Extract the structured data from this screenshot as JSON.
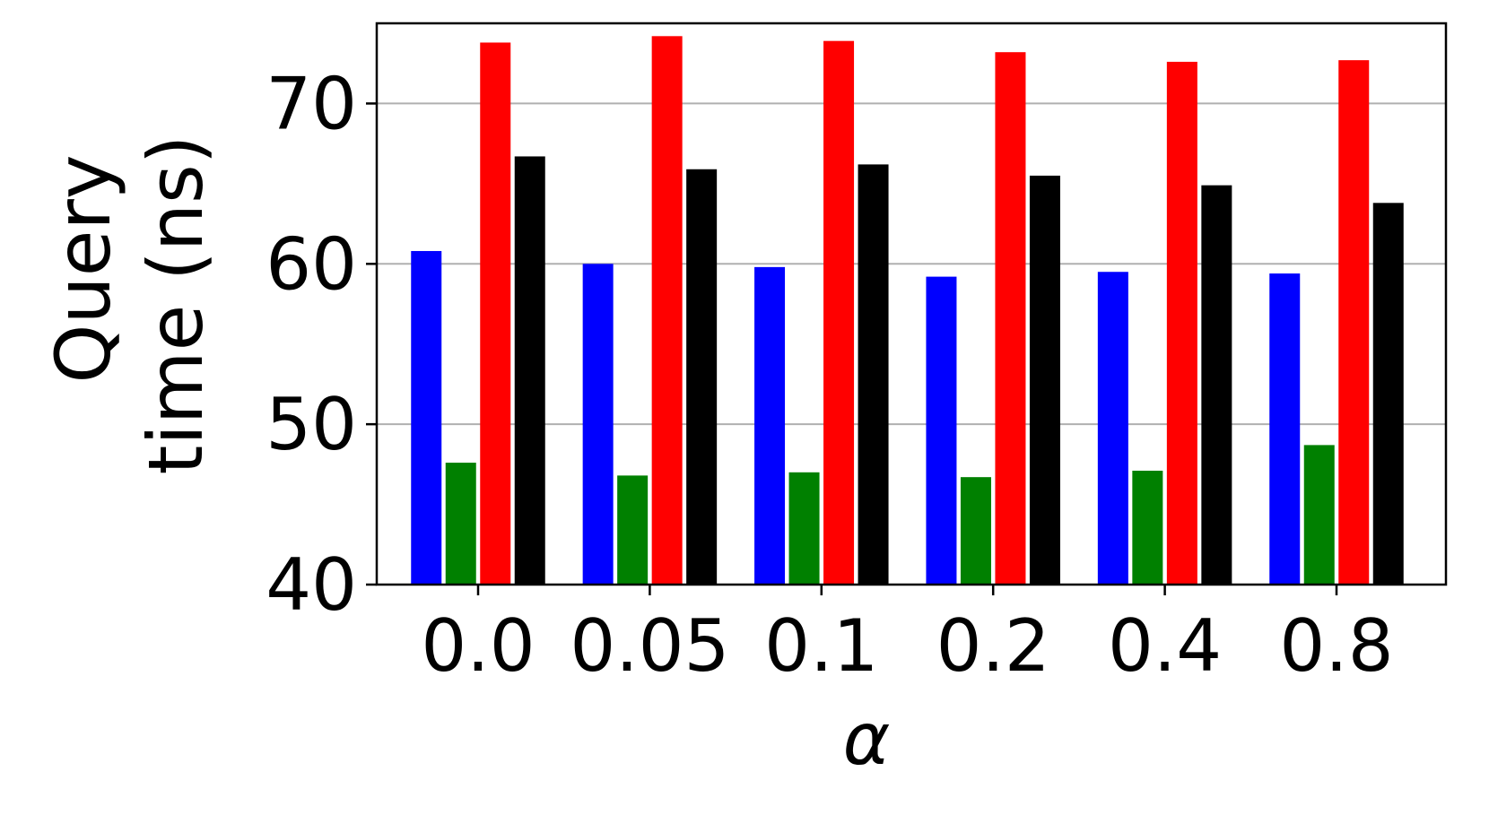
{
  "chart_data": {
    "type": "bar",
    "xlabel": "α",
    "ylabel_lines": [
      "Query",
      "time (ns)"
    ],
    "categories": [
      "0.0",
      "0.05",
      "0.1",
      "0.2",
      "0.4",
      "0.8"
    ],
    "ylim": [
      40,
      75
    ],
    "yticks": [
      40,
      50,
      60,
      70
    ],
    "grid": "horizontal",
    "legend": "none",
    "series": [
      {
        "color": "#0000ff",
        "values": [
          60.8,
          60.0,
          59.8,
          59.2,
          59.5,
          59.4
        ]
      },
      {
        "color": "#008000",
        "values": [
          47.6,
          46.8,
          47.0,
          46.7,
          47.1,
          48.7
        ]
      },
      {
        "color": "#ff0000",
        "values": [
          73.8,
          74.2,
          73.9,
          73.2,
          72.6,
          72.7
        ]
      },
      {
        "color": "#000000",
        "values": [
          66.7,
          65.9,
          66.2,
          65.5,
          64.9,
          63.8
        ]
      }
    ]
  }
}
